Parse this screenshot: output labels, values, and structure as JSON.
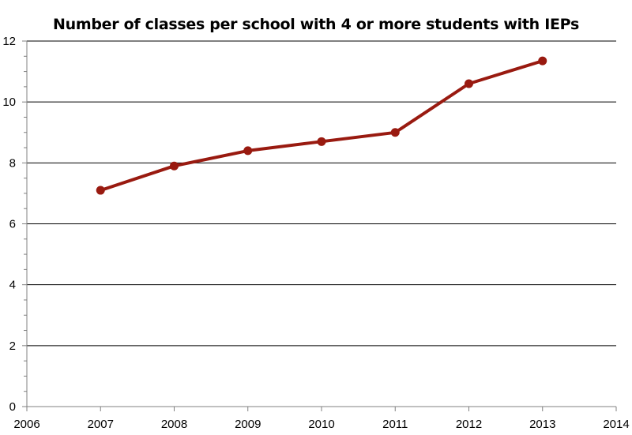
{
  "chart_data": {
    "type": "line",
    "title": "Number of classes per school with 4 or more students with IEPs",
    "xlabel": "",
    "ylabel": "",
    "xlim": [
      2006,
      2014
    ],
    "ylim": [
      0,
      12
    ],
    "xticks": [
      2006,
      2007,
      2008,
      2009,
      2010,
      2011,
      2012,
      2013,
      2014
    ],
    "yticks": [
      0,
      2,
      4,
      6,
      8,
      10,
      12
    ],
    "grid": "horizontal",
    "legend": "none",
    "series": [
      {
        "x": [
          2007,
          2008,
          2009,
          2010,
          2011,
          2012,
          2013
        ],
        "y": [
          7.1,
          7.9,
          8.4,
          8.7,
          9.0,
          10.6,
          11.35
        ],
        "color": "#991a10"
      }
    ]
  }
}
